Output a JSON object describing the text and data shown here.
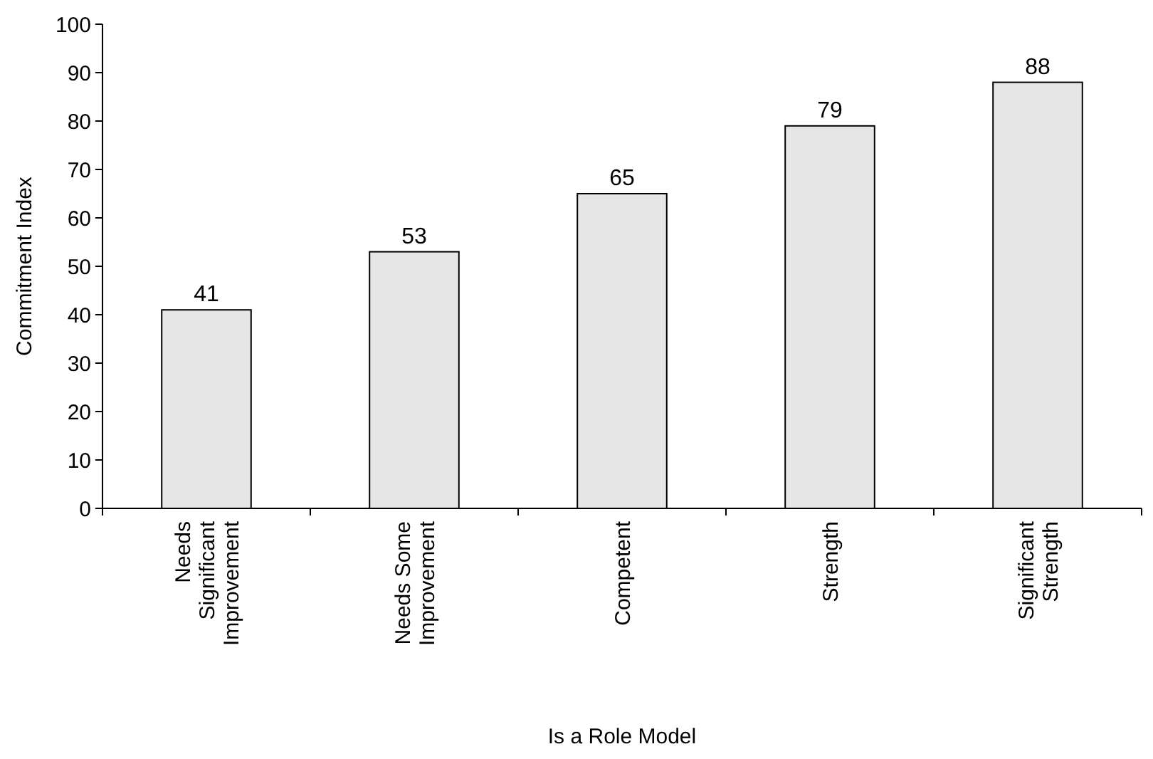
{
  "chart_data": {
    "type": "bar",
    "xlabel": "Is a Role Model",
    "ylabel": "Commitment Index",
    "categories": [
      "Needs Significant Improvement",
      "Needs Some Improvement",
      "Competent",
      "Strength",
      "Significant Strength"
    ],
    "values": [
      41,
      53,
      65,
      79,
      88
    ],
    "color": "#e6e6e6",
    "ylim": [
      0,
      100
    ],
    "yticks": [
      0,
      10,
      20,
      30,
      40,
      50,
      60,
      70,
      80,
      90,
      100
    ],
    "grid": false,
    "data_labels": true
  }
}
